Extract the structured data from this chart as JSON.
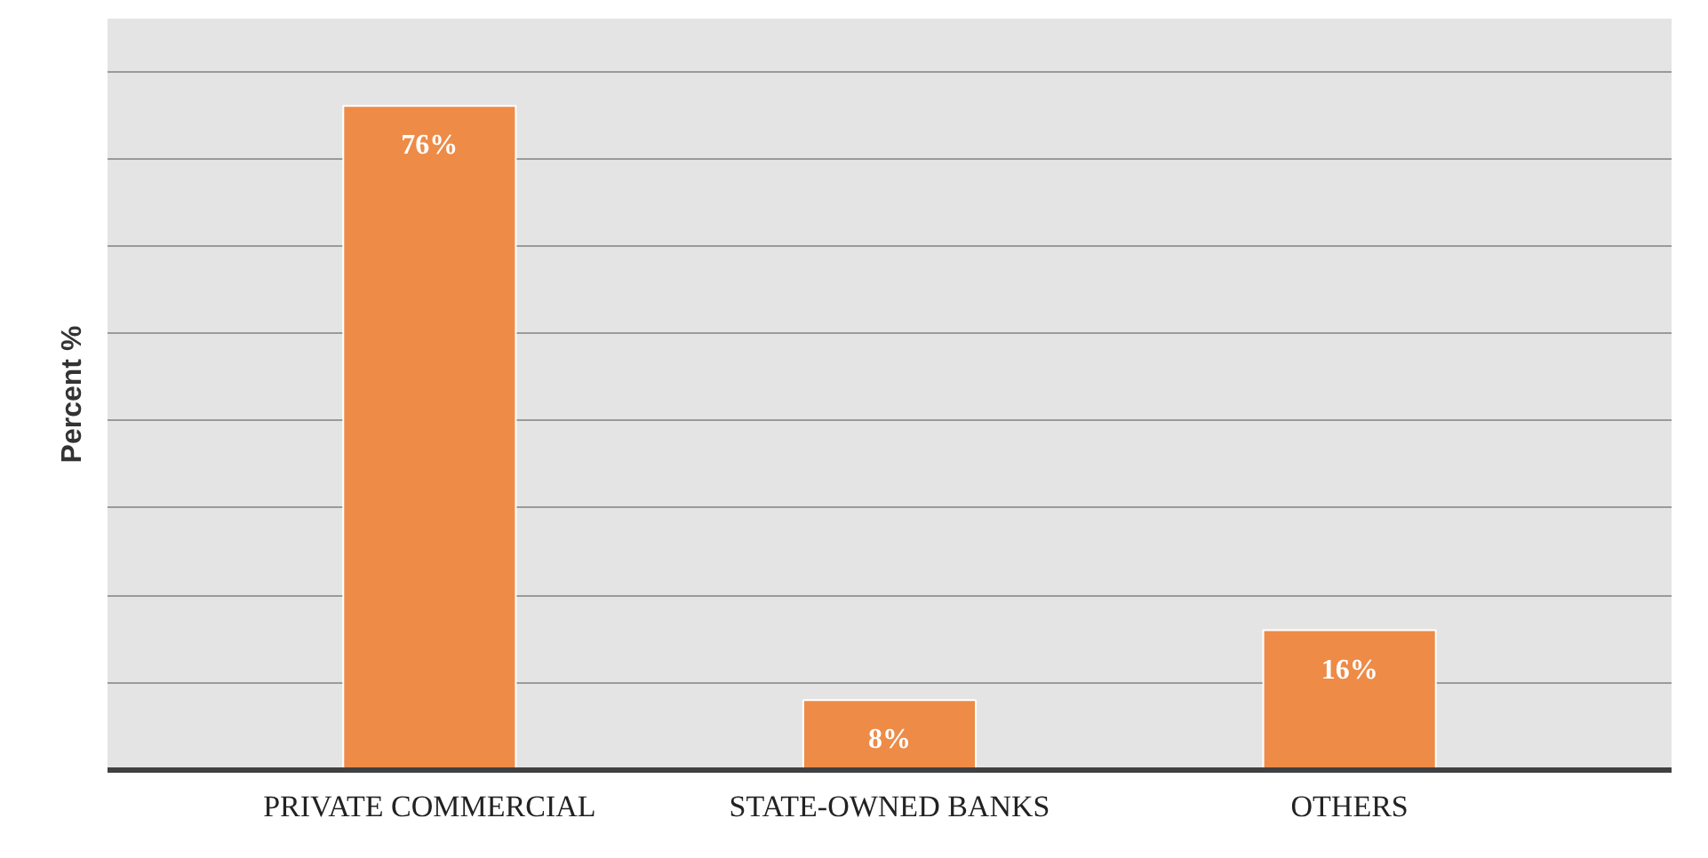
{
  "chart_data": {
    "type": "bar",
    "ylabel": "Percent %",
    "categories": [
      "PRIVATE COMMERCIAL",
      "STATE-OWNED BANKS",
      "OTHERS"
    ],
    "values": [
      76,
      8,
      16
    ],
    "color": "#ed8b47",
    "value_labels": [
      "76%",
      "8%",
      "16%"
    ],
    "ylim": [
      0,
      86
    ],
    "yticks": [
      {
        "value": 0,
        "label": null
      },
      {
        "value": 10,
        "label": null
      },
      {
        "value": 20,
        "label": null
      },
      {
        "value": 30,
        "label": null
      },
      {
        "value": 40,
        "label": null
      },
      {
        "value": 50,
        "label": null
      },
      {
        "value": 60,
        "label": null
      },
      {
        "value": 70,
        "label": null
      },
      {
        "value": 80,
        "label": null
      }
    ],
    "grid": "y",
    "tick_labels": "x"
  }
}
